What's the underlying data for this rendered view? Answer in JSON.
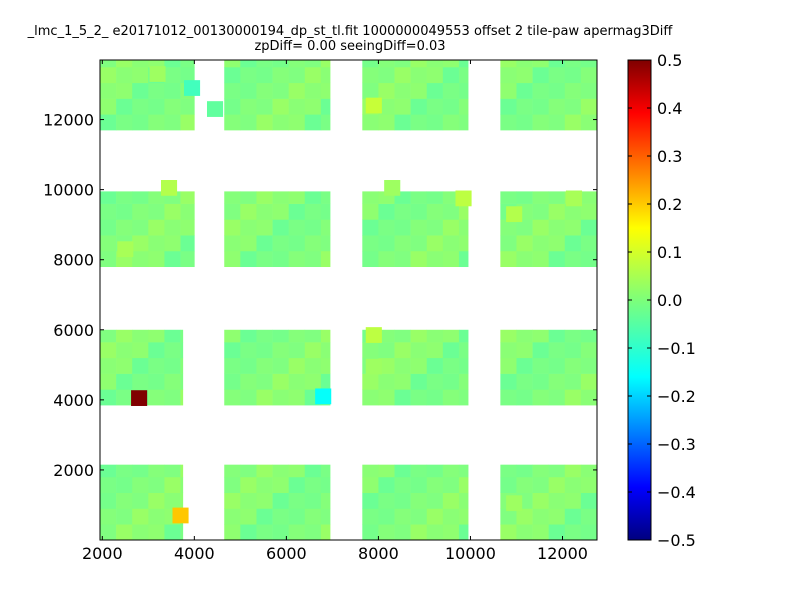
{
  "chart_data": {
    "type": "heatmap",
    "title": "_lmc_1_5_2_ e20171012_00130000194_dp_st_tl.fit 1000000049553 offset 2 tile-paw apermag3Diff",
    "subtitle": "zpDiff= 0.00 seeingDiff=0.03",
    "xlabel": "",
    "ylabel": "",
    "xlim": [
      1950,
      12750
    ],
    "ylim": [
      0,
      13700
    ],
    "x_ticks": [
      "2000",
      "4000",
      "6000",
      "8000",
      "10000",
      "12000"
    ],
    "y_ticks": [
      "2000",
      "4000",
      "6000",
      "8000",
      "10000",
      "12000"
    ],
    "colorbar": {
      "range": [
        -0.5,
        0.5
      ],
      "ticks": [
        "0.5",
        "0.4",
        "0.3",
        "0.2",
        "0.1",
        "0.0",
        "−0.1",
        "−0.2",
        "−0.3",
        "−0.4",
        "−0.5"
      ],
      "colormap": "jet"
    },
    "grid": false,
    "cell_size": [
      350,
      450
    ],
    "base_value": 0.0,
    "blocks": [
      {
        "x": [
          1950,
          3750
        ],
        "y": [
          0,
          2150
        ]
      },
      {
        "x": [
          4650,
          6950
        ],
        "y": [
          0,
          2150
        ]
      },
      {
        "x": [
          7650,
          9950
        ],
        "y": [
          0,
          2150
        ]
      },
      {
        "x": [
          10650,
          12750
        ],
        "y": [
          0,
          2150
        ]
      },
      {
        "x": [
          1950,
          3750
        ],
        "y": [
          3850,
          6000
        ]
      },
      {
        "x": [
          4650,
          6950
        ],
        "y": [
          3850,
          6000
        ]
      },
      {
        "x": [
          7650,
          9950
        ],
        "y": [
          3850,
          6000
        ]
      },
      {
        "x": [
          10650,
          12750
        ],
        "y": [
          3850,
          6000
        ]
      },
      {
        "x": [
          1950,
          4000
        ],
        "y": [
          7800,
          9950
        ]
      },
      {
        "x": [
          4650,
          6950
        ],
        "y": [
          7800,
          9950
        ]
      },
      {
        "x": [
          7650,
          9950
        ],
        "y": [
          7800,
          9950
        ]
      },
      {
        "x": [
          10650,
          12750
        ],
        "y": [
          7800,
          9950
        ]
      },
      {
        "x": [
          1950,
          4000
        ],
        "y": [
          11700,
          13700
        ]
      },
      {
        "x": [
          4650,
          6950
        ],
        "y": [
          11700,
          13700
        ]
      },
      {
        "x": [
          7650,
          9950
        ],
        "y": [
          11700,
          13700
        ]
      },
      {
        "x": [
          10650,
          12750
        ],
        "y": [
          11700,
          13700
        ]
      }
    ],
    "highlight_cells": [
      {
        "x": 2800,
        "y": 4050,
        "value": 0.5
      },
      {
        "x": 3700,
        "y": 700,
        "value": 0.18
      },
      {
        "x": 6800,
        "y": 4100,
        "value": -0.12
      },
      {
        "x": 3450,
        "y": 10050,
        "value": 0.05
      },
      {
        "x": 7900,
        "y": 12400,
        "value": 0.07
      },
      {
        "x": 7900,
        "y": 5850,
        "value": 0.06
      },
      {
        "x": 9850,
        "y": 9750,
        "value": 0.06
      },
      {
        "x": 2500,
        "y": 8300,
        "value": 0.04
      },
      {
        "x": 3200,
        "y": 13300,
        "value": 0.03
      },
      {
        "x": 3950,
        "y": 12900,
        "value": -0.06
      },
      {
        "x": 4450,
        "y": 12300,
        "value": -0.03
      },
      {
        "x": 12250,
        "y": 9750,
        "value": 0.04
      },
      {
        "x": 10950,
        "y": 9300,
        "value": 0.05
      },
      {
        "x": 8300,
        "y": 10050,
        "value": 0.03
      },
      {
        "x": 10950,
        "y": 1050,
        "value": 0.03
      },
      {
        "x": 7900,
        "y": 4950,
        "value": 0.03
      }
    ]
  }
}
